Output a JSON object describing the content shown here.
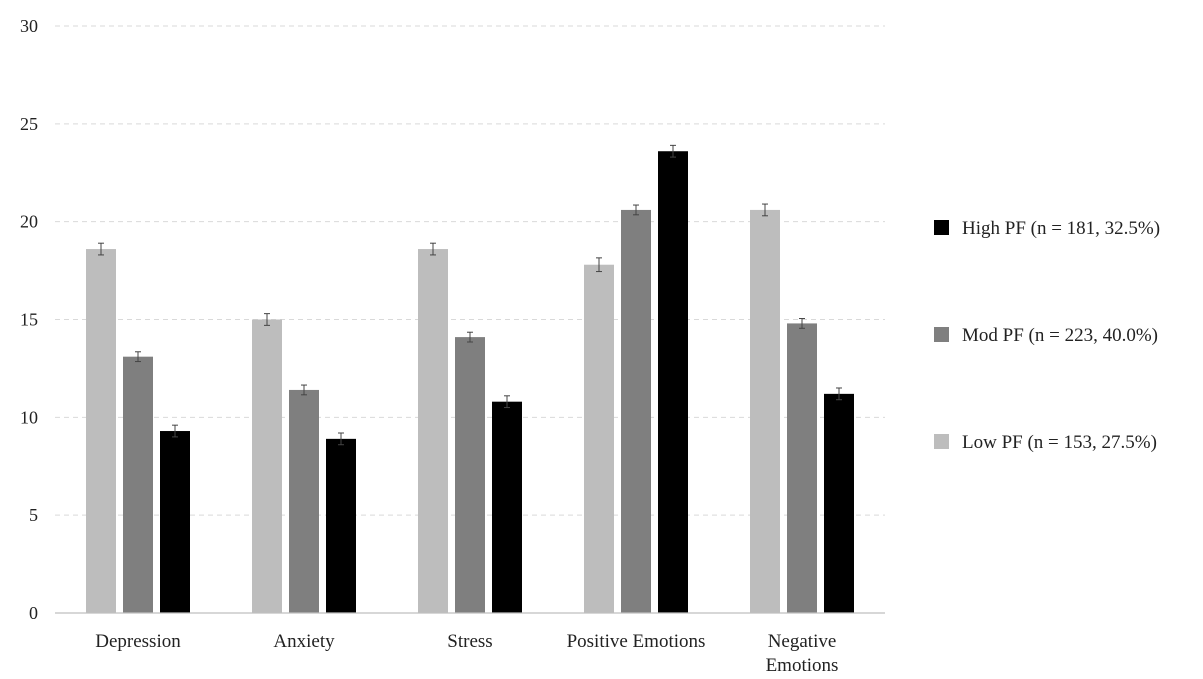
{
  "chart_data": {
    "type": "bar",
    "categories": [
      "Depression",
      "Anxiety",
      "Stress",
      "Positive Emotions",
      "Negative Emotions"
    ],
    "category_lines": [
      [
        "Depression"
      ],
      [
        "Anxiety"
      ],
      [
        "Stress"
      ],
      [
        "Positive Emotions"
      ],
      [
        "Negative",
        "Emotions"
      ]
    ],
    "series": [
      {
        "name": "Low PF (n = 153, 27.5%)",
        "color": "#bdbdbd",
        "values": [
          18.6,
          15.0,
          18.6,
          17.8,
          20.6
        ],
        "errors": [
          0.3,
          0.3,
          0.3,
          0.35,
          0.3
        ]
      },
      {
        "name": "Mod PF (n = 223, 40.0%)",
        "color": "#7f7f7f",
        "values": [
          13.1,
          11.4,
          14.1,
          20.6,
          14.8
        ],
        "errors": [
          0.25,
          0.25,
          0.25,
          0.25,
          0.25
        ]
      },
      {
        "name": "High PF (n = 181, 32.5%)",
        "color": "#000000",
        "values": [
          9.3,
          8.9,
          10.8,
          23.6,
          11.2
        ],
        "errors": [
          0.3,
          0.3,
          0.3,
          0.3,
          0.3
        ]
      }
    ],
    "legend_order": [
      2,
      1,
      0
    ],
    "legend_position": "right",
    "ylim": [
      0,
      30
    ],
    "yticks": [
      0,
      5,
      10,
      15,
      20,
      25,
      30
    ],
    "grid": true,
    "error_bars": true,
    "title": "",
    "xlabel": "",
    "ylabel": ""
  }
}
